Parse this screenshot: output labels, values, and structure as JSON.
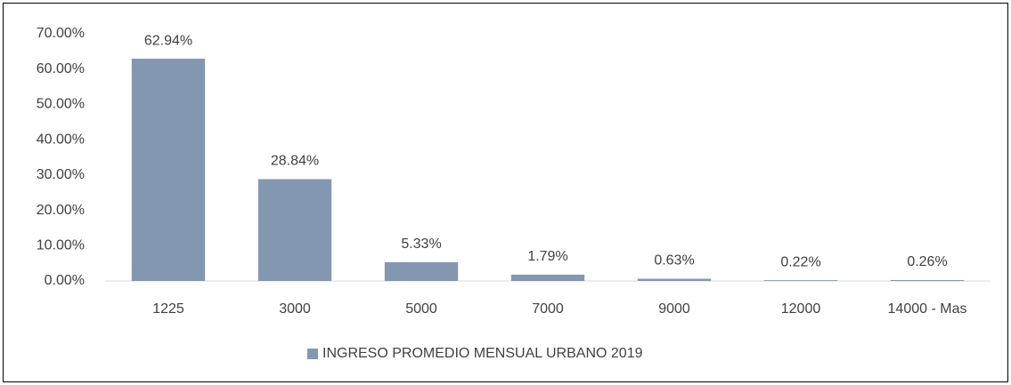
{
  "chart_data": {
    "type": "bar",
    "categories": [
      "1225",
      "3000",
      "5000",
      "7000",
      "9000",
      "12000",
      "14000 - Mas"
    ],
    "series": [
      {
        "name": "INGRESO PROMEDIO MENSUAL URBANO 2019",
        "color": "#8497b0",
        "values": [
          62.94,
          28.84,
          5.33,
          1.79,
          0.63,
          0.22,
          0.26
        ],
        "value_labels": [
          "62.94%",
          "28.84%",
          "5.33%",
          "1.79%",
          "0.63%",
          "0.22%",
          "0.26%"
        ]
      }
    ],
    "ylim": [
      0,
      70
    ],
    "yticks": [
      {
        "value": 0,
        "label": "0.00%"
      },
      {
        "value": 10,
        "label": "10.00%"
      },
      {
        "value": 20,
        "label": "20.00%"
      },
      {
        "value": 30,
        "label": "30.00%"
      },
      {
        "value": 40,
        "label": "40.00%"
      },
      {
        "value": 50,
        "label": "50.00%"
      },
      {
        "value": 60,
        "label": "60.00%"
      },
      {
        "value": 70,
        "label": "70.00%"
      }
    ],
    "grid": false,
    "legend": "bottom"
  }
}
